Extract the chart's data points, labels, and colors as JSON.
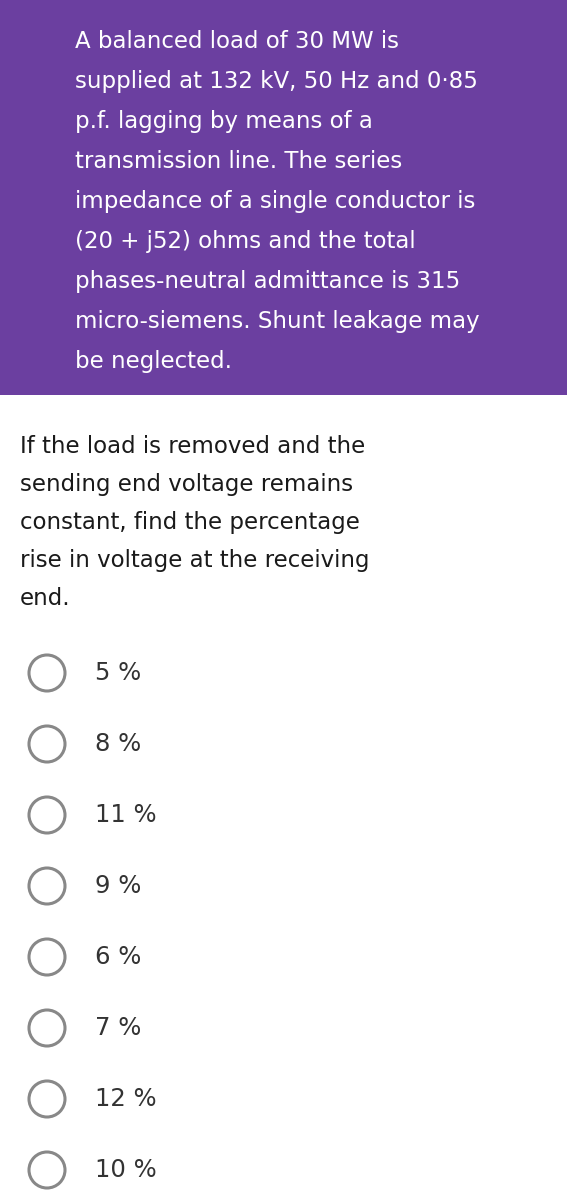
{
  "header_bg_color": "#6B3FA0",
  "header_text_color": "#FFFFFF",
  "body_bg_color": "#FFFFFF",
  "body_text_color": "#1a1a1a",
  "option_text_color": "#333333",
  "circle_color": "#888888",
  "header_lines": [
    "A balanced load of 30 MW is",
    "supplied at 132 kV, 50 Hz and 0·85",
    "p.f. lagging by means of a",
    "transmission line. The series",
    "impedance of a single conductor is",
    "(20 + j52) ohms and the total",
    "phases-neutral admittance is 315",
    "micro-siemens. Shunt leakage may",
    "be neglected."
  ],
  "question_lines": [
    "If the load is removed and the",
    "sending end voltage remains",
    "constant, find the percentage",
    "rise in voltage at the receiving",
    "end."
  ],
  "options": [
    "5 %",
    "8 %",
    "11 %",
    "9 %",
    "6 %",
    "7 %",
    "12 %",
    "10 %"
  ],
  "header_font_size": 16.5,
  "question_font_size": 16.5,
  "option_font_size": 17.5,
  "figsize": [
    5.67,
    12.0
  ],
  "dpi": 100
}
